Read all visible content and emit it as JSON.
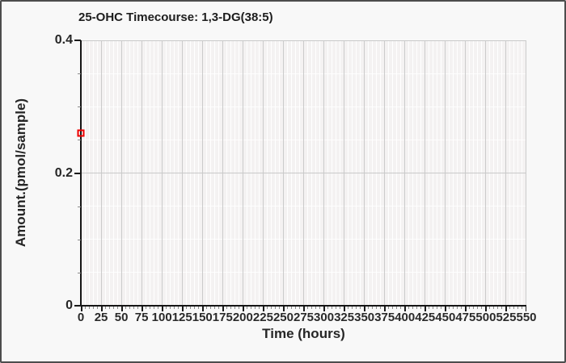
{
  "window": {
    "background": "#f8f8f8",
    "border_color": "#4d4d4d"
  },
  "chart_data": {
    "type": "scatter",
    "title": "25-OHC Timecourse: 1,3-DG(38:5)",
    "xlabel": "Time (hours)",
    "ylabel": "Amount.(pmol/sample)",
    "xlim": [
      0,
      550
    ],
    "ylim": [
      0,
      0.4
    ],
    "x_ticks": [
      0,
      25,
      50,
      75,
      100,
      125,
      150,
      175,
      200,
      225,
      250,
      275,
      300,
      325,
      350,
      375,
      400,
      425,
      450,
      475,
      500,
      525,
      550
    ],
    "y_ticks": [
      0,
      0.2,
      0.4
    ],
    "y_tick_labels": [
      "0",
      "0.2",
      "0.4"
    ],
    "x_minor_step": 5,
    "y_minor_step": 0.05,
    "grid": true,
    "legend": "none",
    "marker": {
      "shape": "open-square",
      "color": "#ee0000"
    },
    "series": [
      {
        "name": "1,3-DG(38:5)",
        "points": [
          {
            "x": 0,
            "y": 0.26
          }
        ]
      }
    ]
  }
}
